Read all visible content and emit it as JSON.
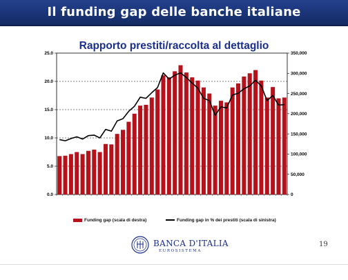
{
  "slide": {
    "title": "Il funding gap delle banche italiane",
    "page_number": "19"
  },
  "logo": {
    "name": "BANCA D'ITALIA",
    "subtitle": "EUROSISTEMA"
  },
  "legend": {
    "bars_label": "Funding gap (scala di destra)",
    "line_label": "Funding gap in % dei prestiti (scala di sinistra)"
  },
  "colors": {
    "bar": "#b5121b",
    "line": "#000000",
    "title_bar": "#1a3477",
    "chart_title": "#1a2f8c"
  },
  "chart_data": {
    "type": "bar",
    "title": "Rapporto prestiti/raccolta al dettaglio",
    "left_axis": {
      "ylim": [
        0,
        25
      ],
      "ticks": [
        "0.0",
        "5.0",
        "10.0",
        "15.0",
        "20.0",
        "25.0"
      ]
    },
    "right_axis": {
      "ylim": [
        0,
        350000
      ],
      "ticks": [
        "0",
        "50,000",
        "100,000",
        "150,000",
        "200,000",
        "250,000",
        "300,000",
        "350,000"
      ]
    },
    "grid": "dashed horizontal",
    "legend_position": "bottom",
    "series": [
      {
        "name": "Funding gap (scala di destra)",
        "type": "bar",
        "axis": "right",
        "values": [
          95000,
          96000,
          100000,
          105000,
          100000,
          108000,
          111000,
          105000,
          125000,
          124000,
          150000,
          160000,
          180000,
          200000,
          220000,
          222000,
          240000,
          260000,
          295000,
          290000,
          305000,
          320000,
          302000,
          290000,
          282000,
          265000,
          250000,
          220000,
          232000,
          228000,
          265000,
          275000,
          292000,
          300000,
          308000,
          282000,
          240000,
          266000,
          238000,
          240000
        ]
      },
      {
        "name": "Funding gap in % dei prestiti (scala di sinistra)",
        "type": "line",
        "axis": "left",
        "values": [
          9.7,
          9.5,
          9.9,
          10.2,
          9.8,
          10.4,
          10.5,
          10.0,
          11.5,
          11.2,
          13.0,
          13.4,
          14.7,
          15.6,
          17.2,
          17.0,
          18.0,
          18.9,
          21.5,
          20.4,
          21.1,
          21.5,
          20.7,
          19.7,
          18.8,
          17.0,
          16.6,
          14.0,
          15.5,
          15.3,
          17.6,
          17.9,
          18.7,
          19.2,
          20.2,
          19.2,
          16.6,
          17.5,
          15.8,
          15.9
        ]
      }
    ]
  }
}
